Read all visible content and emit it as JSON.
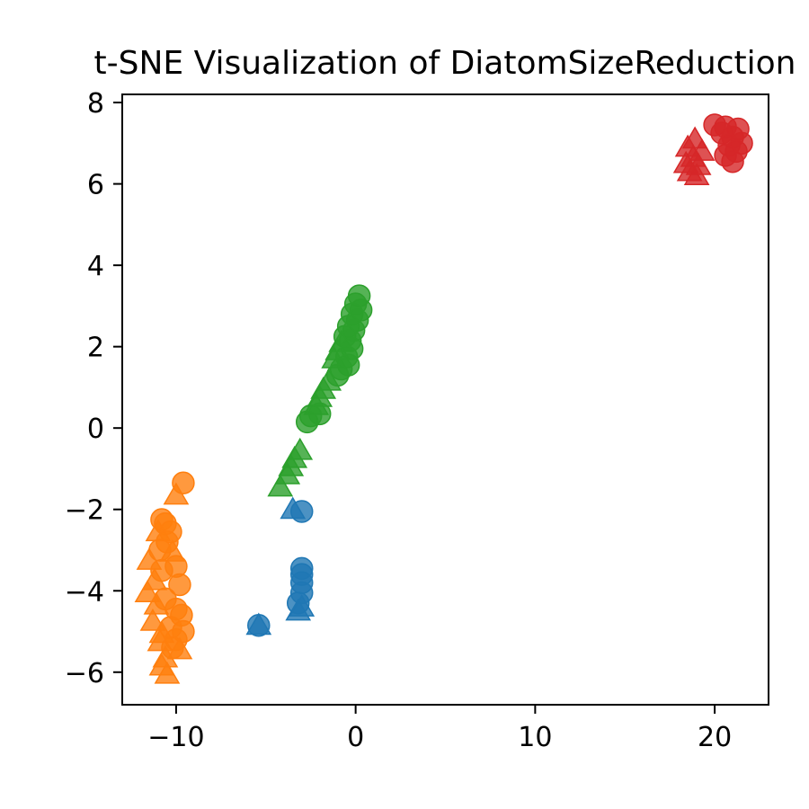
{
  "chart_data": {
    "type": "scatter",
    "title": "t-SNE Visualization of DiatomSizeReduction",
    "xlabel": "",
    "ylabel": "",
    "xlim": [
      -13,
      23
    ],
    "ylim": [
      -6.8,
      8.2
    ],
    "x_ticks": [
      -10,
      0,
      10,
      20
    ],
    "y_ticks": [
      -6,
      -4,
      -2,
      0,
      2,
      4,
      6,
      8
    ],
    "x_tick_labels": [
      "−10",
      "0",
      "10",
      "20"
    ],
    "y_tick_labels": [
      "−6",
      "−4",
      "−2",
      "0",
      "2",
      "4",
      "6",
      "8"
    ],
    "grid": false,
    "marker_alpha": 0.8,
    "series": [
      {
        "color": "#1f77b4",
        "points": [
          {
            "x": -3.0,
            "y": -2.05,
            "marker": "circle"
          },
          {
            "x": -3.5,
            "y": -2.05,
            "marker": "triangle"
          },
          {
            "x": -5.4,
            "y": -4.85,
            "marker": "circle"
          },
          {
            "x": -5.4,
            "y": -4.9,
            "marker": "triangle"
          },
          {
            "x": -3.0,
            "y": -3.45,
            "marker": "circle"
          },
          {
            "x": -3.0,
            "y": -3.6,
            "marker": "circle"
          },
          {
            "x": -3.0,
            "y": -3.8,
            "marker": "circle"
          },
          {
            "x": -3.0,
            "y": -4.05,
            "marker": "circle"
          },
          {
            "x": -3.2,
            "y": -4.3,
            "marker": "circle"
          },
          {
            "x": -3.0,
            "y": -4.45,
            "marker": "triangle"
          },
          {
            "x": -3.2,
            "y": -4.55,
            "marker": "triangle"
          }
        ]
      },
      {
        "color": "#ff7f0e",
        "points": [
          {
            "x": -9.6,
            "y": -1.35,
            "marker": "circle"
          },
          {
            "x": -10.0,
            "y": -1.7,
            "marker": "triangle"
          },
          {
            "x": -10.8,
            "y": -2.25,
            "marker": "circle"
          },
          {
            "x": -10.6,
            "y": -2.35,
            "marker": "circle"
          },
          {
            "x": -10.3,
            "y": -2.55,
            "marker": "circle"
          },
          {
            "x": -11.0,
            "y": -2.6,
            "marker": "triangle"
          },
          {
            "x": -10.5,
            "y": -2.8,
            "marker": "circle"
          },
          {
            "x": -10.9,
            "y": -3.0,
            "marker": "circle"
          },
          {
            "x": -10.2,
            "y": -3.1,
            "marker": "triangle"
          },
          {
            "x": -11.5,
            "y": -3.3,
            "marker": "triangle"
          },
          {
            "x": -10.0,
            "y": -3.4,
            "marker": "circle"
          },
          {
            "x": -10.8,
            "y": -3.5,
            "marker": "circle"
          },
          {
            "x": -11.2,
            "y": -3.8,
            "marker": "triangle"
          },
          {
            "x": -9.8,
            "y": -3.85,
            "marker": "circle"
          },
          {
            "x": -11.6,
            "y": -4.1,
            "marker": "triangle"
          },
          {
            "x": -10.6,
            "y": -4.2,
            "marker": "circle"
          },
          {
            "x": -11.1,
            "y": -4.4,
            "marker": "triangle"
          },
          {
            "x": -10.0,
            "y": -4.45,
            "marker": "circle"
          },
          {
            "x": -9.7,
            "y": -4.6,
            "marker": "circle"
          },
          {
            "x": -11.3,
            "y": -4.8,
            "marker": "triangle"
          },
          {
            "x": -10.3,
            "y": -4.9,
            "marker": "circle"
          },
          {
            "x": -9.6,
            "y": -5.0,
            "marker": "circle"
          },
          {
            "x": -10.8,
            "y": -5.1,
            "marker": "triangle"
          },
          {
            "x": -10.0,
            "y": -5.2,
            "marker": "circle"
          },
          {
            "x": -10.9,
            "y": -5.3,
            "marker": "triangle"
          },
          {
            "x": -10.2,
            "y": -5.4,
            "marker": "circle"
          },
          {
            "x": -9.8,
            "y": -5.5,
            "marker": "triangle"
          },
          {
            "x": -10.6,
            "y": -5.7,
            "marker": "triangle"
          },
          {
            "x": -10.8,
            "y": -5.9,
            "marker": "triangle"
          },
          {
            "x": -10.5,
            "y": -6.1,
            "marker": "triangle"
          }
        ]
      },
      {
        "color": "#2ca02c",
        "points": [
          {
            "x": 0.2,
            "y": 3.25,
            "marker": "circle"
          },
          {
            "x": 0.0,
            "y": 3.05,
            "marker": "circle"
          },
          {
            "x": 0.3,
            "y": 2.9,
            "marker": "circle"
          },
          {
            "x": -0.2,
            "y": 2.8,
            "marker": "circle"
          },
          {
            "x": 0.1,
            "y": 2.65,
            "marker": "circle"
          },
          {
            "x": -0.4,
            "y": 2.5,
            "marker": "circle"
          },
          {
            "x": -0.1,
            "y": 2.4,
            "marker": "circle"
          },
          {
            "x": -0.6,
            "y": 2.25,
            "marker": "circle"
          },
          {
            "x": -0.3,
            "y": 2.15,
            "marker": "circle"
          },
          {
            "x": -0.8,
            "y": 2.05,
            "marker": "triangle"
          },
          {
            "x": -0.2,
            "y": 1.95,
            "marker": "circle"
          },
          {
            "x": -1.0,
            "y": 1.85,
            "marker": "triangle"
          },
          {
            "x": -0.5,
            "y": 1.75,
            "marker": "circle"
          },
          {
            "x": -1.2,
            "y": 1.65,
            "marker": "triangle"
          },
          {
            "x": -0.4,
            "y": 1.55,
            "marker": "circle"
          },
          {
            "x": -0.8,
            "y": 1.45,
            "marker": "circle"
          },
          {
            "x": -1.0,
            "y": 1.3,
            "marker": "circle"
          },
          {
            "x": -1.5,
            "y": 1.1,
            "marker": "triangle"
          },
          {
            "x": -1.8,
            "y": 0.9,
            "marker": "triangle"
          },
          {
            "x": -2.0,
            "y": 0.7,
            "marker": "triangle"
          },
          {
            "x": -2.2,
            "y": 0.5,
            "marker": "triangle"
          },
          {
            "x": -2.0,
            "y": 0.35,
            "marker": "circle"
          },
          {
            "x": -2.5,
            "y": 0.3,
            "marker": "circle"
          },
          {
            "x": -2.7,
            "y": 0.15,
            "marker": "circle"
          },
          {
            "x": -3.1,
            "y": -0.6,
            "marker": "triangle"
          },
          {
            "x": -3.4,
            "y": -0.8,
            "marker": "triangle"
          },
          {
            "x": -3.6,
            "y": -1.0,
            "marker": "triangle"
          },
          {
            "x": -3.8,
            "y": -1.2,
            "marker": "triangle"
          },
          {
            "x": -4.2,
            "y": -1.5,
            "marker": "triangle"
          }
        ]
      },
      {
        "color": "#d62728",
        "points": [
          {
            "x": 20.0,
            "y": 7.45,
            "marker": "circle"
          },
          {
            "x": 20.6,
            "y": 7.4,
            "marker": "circle"
          },
          {
            "x": 21.3,
            "y": 7.35,
            "marker": "circle"
          },
          {
            "x": 20.4,
            "y": 7.25,
            "marker": "circle"
          },
          {
            "x": 21.0,
            "y": 7.15,
            "marker": "circle"
          },
          {
            "x": 21.5,
            "y": 7.0,
            "marker": "circle"
          },
          {
            "x": 20.8,
            "y": 6.95,
            "marker": "circle"
          },
          {
            "x": 21.2,
            "y": 6.8,
            "marker": "circle"
          },
          {
            "x": 20.6,
            "y": 6.7,
            "marker": "circle"
          },
          {
            "x": 21.0,
            "y": 6.55,
            "marker": "circle"
          },
          {
            "x": 18.9,
            "y": 7.05,
            "marker": "triangle"
          },
          {
            "x": 18.5,
            "y": 6.85,
            "marker": "triangle"
          },
          {
            "x": 19.3,
            "y": 6.75,
            "marker": "triangle"
          },
          {
            "x": 18.8,
            "y": 6.6,
            "marker": "triangle"
          },
          {
            "x": 18.4,
            "y": 6.45,
            "marker": "triangle"
          },
          {
            "x": 19.1,
            "y": 6.4,
            "marker": "triangle"
          },
          {
            "x": 18.6,
            "y": 6.25,
            "marker": "triangle"
          },
          {
            "x": 19.0,
            "y": 6.15,
            "marker": "triangle"
          }
        ]
      }
    ]
  }
}
